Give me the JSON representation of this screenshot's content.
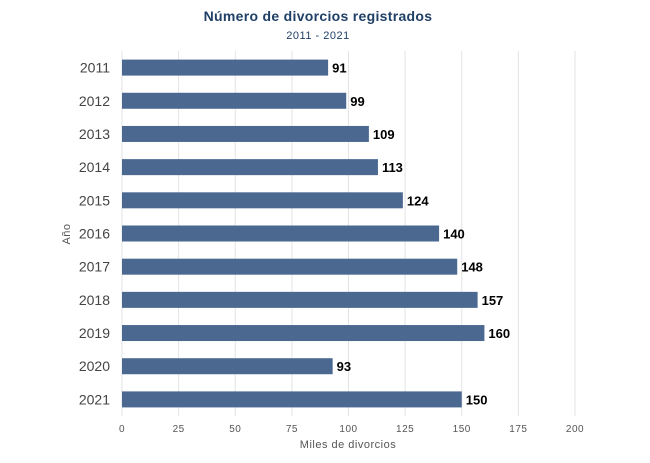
{
  "chart_data": {
    "type": "bar",
    "orientation": "horizontal",
    "title": "Número de divorcios registrados",
    "subtitle": "2011 - 2021",
    "xlabel": "Miles de divorcios",
    "ylabel": "Año",
    "categories": [
      "2011",
      "2012",
      "2013",
      "2014",
      "2015",
      "2016",
      "2017",
      "2018",
      "2019",
      "2020",
      "2021"
    ],
    "values": [
      91,
      99,
      109,
      113,
      124,
      140,
      148,
      157,
      160,
      93,
      150
    ],
    "xlim": [
      0,
      200
    ],
    "xticks": [
      0,
      25,
      50,
      75,
      100,
      125,
      150,
      175,
      200
    ],
    "grid": true,
    "bar_color": "#4a6890",
    "title_color": "#1f3f66"
  }
}
